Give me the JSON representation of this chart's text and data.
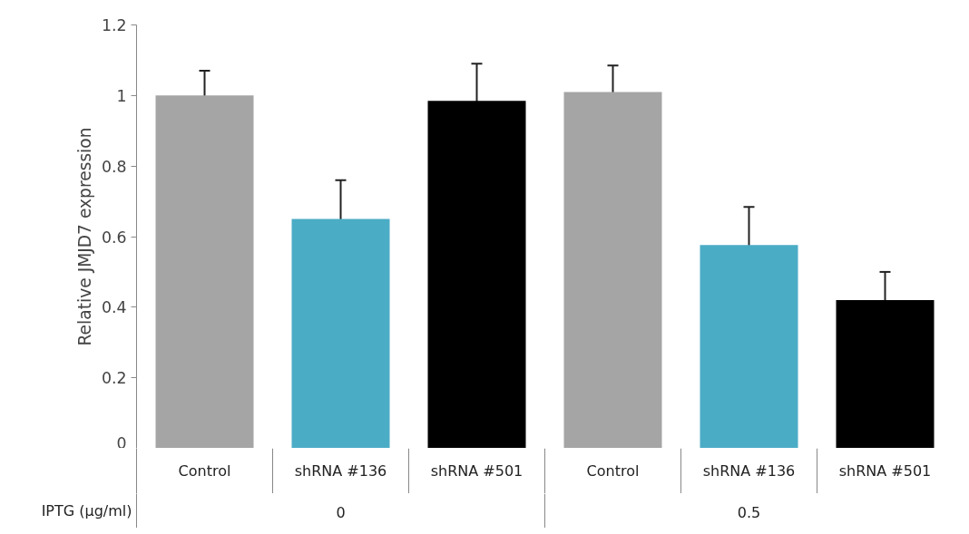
{
  "chart_data": {
    "type": "bar",
    "categories": [
      "Control",
      "shRNA #136",
      "shRNA #501",
      "Control",
      "shRNA #136",
      "shRNA #501"
    ],
    "values": [
      1.0,
      0.65,
      0.985,
      1.01,
      0.576,
      0.42
    ],
    "colors": [
      "#a5a5a5",
      "#4bacc6",
      "#000000",
      "#a5a5a5",
      "#4bacc6",
      "#000000"
    ],
    "errors": [
      0.07,
      0.11,
      0.105,
      0.075,
      0.108,
      0.08
    ],
    "ylim": [
      0,
      1.2
    ],
    "yticks": [
      0,
      0.2,
      0.4,
      0.6,
      0.8,
      1,
      1.2
    ],
    "ylabel": "Relative JMJD7 expression",
    "xlabel": "IPTG (µg/ml)",
    "annotations": [
      "0",
      "0.5"
    ],
    "grid": false
  }
}
